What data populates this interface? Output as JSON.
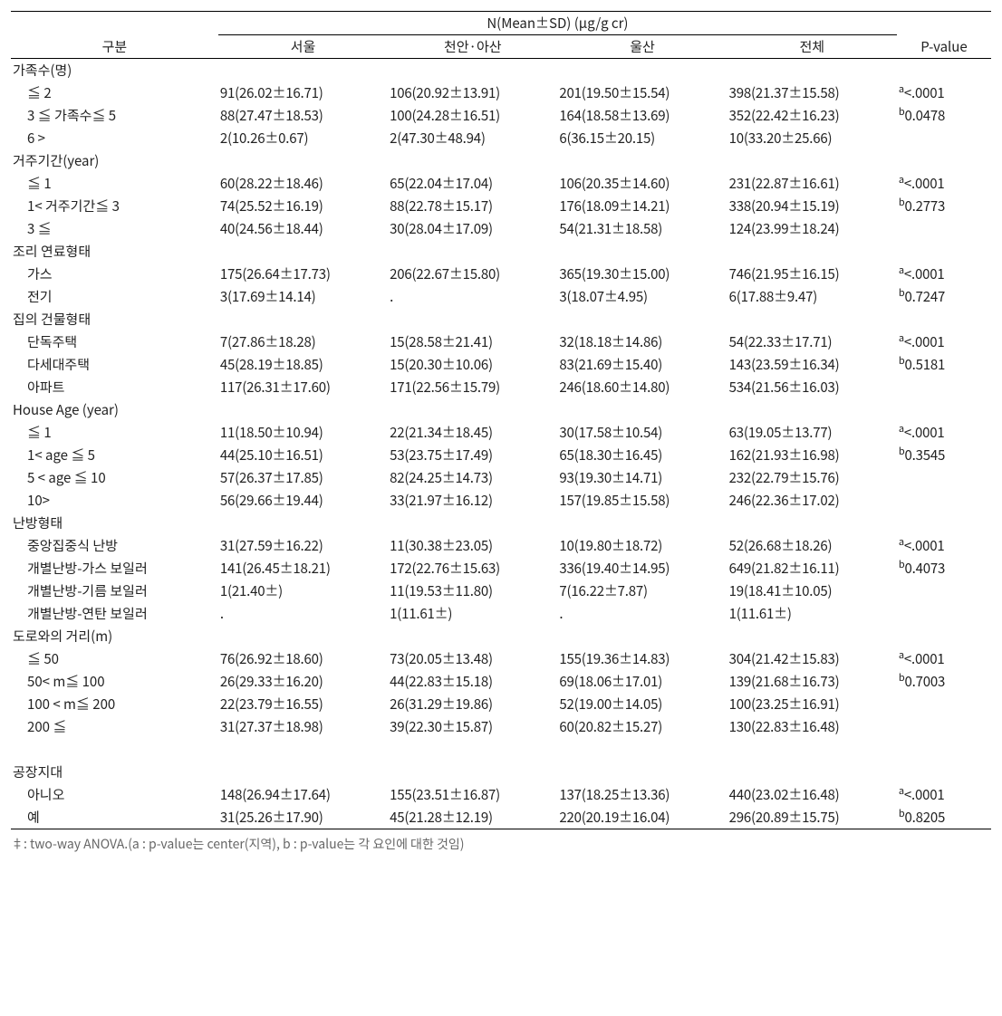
{
  "header": {
    "gubun": "구분",
    "group_header": "N(Mean±SD) (μg/g cr)",
    "cols": [
      "서울",
      "천안·아산",
      "울산",
      "전체"
    ],
    "pvalue": "P-value"
  },
  "footnote": "‡: two-way ANOVA.(a : p-value는 center(지역), b : p-value는 각 요인에 대한 것임)",
  "groups": [
    {
      "label": "가족수(명)",
      "rows": [
        {
          "label": "≦ 2",
          "cells": [
            "91(26.02±16.71)",
            "106(20.92±13.91)",
            "201(19.50±15.54)",
            "398(21.37±15.58)"
          ],
          "p": {
            "sup": "a",
            "val": "<.0001"
          }
        },
        {
          "label": "3 ≦ 가족수≦ 5",
          "cells": [
            "88(27.47±18.53)",
            "100(24.28±16.51)",
            "164(18.58±13.69)",
            "352(22.42±16.23)"
          ],
          "p": {
            "sup": "b",
            "val": "0.0478"
          }
        },
        {
          "label": "6 >",
          "cells": [
            "2(10.26±0.67)",
            "2(47.30±48.94)",
            "6(36.15±20.15)",
            "10(33.20±25.66)"
          ],
          "p": null
        }
      ]
    },
    {
      "label": "거주기간(year)",
      "rows": [
        {
          "label": "≦ 1",
          "cells": [
            "60(28.22±18.46)",
            "65(22.04±17.04)",
            "106(20.35±14.60)",
            "231(22.87±16.61)"
          ],
          "p": {
            "sup": "a",
            "val": "<.0001"
          }
        },
        {
          "label": "1< 거주기간≦ 3",
          "cells": [
            "74(25.52±16.19)",
            "88(22.78±15.17)",
            "176(18.09±14.21)",
            "338(20.94±15.19)"
          ],
          "p": {
            "sup": "b",
            "val": "0.2773"
          }
        },
        {
          "label": "3 ≦",
          "cells": [
            "40(24.56±18.44)",
            "30(28.04±17.09)",
            "54(21.31±18.58)",
            "124(23.99±18.24)"
          ],
          "p": null
        }
      ]
    },
    {
      "label": "조리 연료형태",
      "rows": [
        {
          "label": "가스",
          "cells": [
            "175(26.64±17.73)",
            "206(22.67±15.80)",
            "365(19.30±15.00)",
            "746(21.95±16.15)"
          ],
          "p": {
            "sup": "a",
            "val": "<.0001"
          }
        },
        {
          "label": "전기",
          "cells": [
            "3(17.69±14.14)",
            ".",
            "3(18.07±4.95)",
            "6(17.88±9.47)"
          ],
          "p": {
            "sup": "b",
            "val": "0.7247"
          }
        }
      ]
    },
    {
      "label": "집의 건물형태",
      "rows": [
        {
          "label": "단독주택",
          "cells": [
            "7(27.86±18.28)",
            "15(28.58±21.41)",
            "32(18.18±14.86)",
            "54(22.33±17.71)"
          ],
          "p": {
            "sup": "a",
            "val": "<.0001"
          }
        },
        {
          "label": "다세대주택",
          "cells": [
            "45(28.19±18.85)",
            "15(20.30±10.06)",
            "83(21.69±15.40)",
            "143(23.59±16.34)"
          ],
          "p": {
            "sup": "b",
            "val": "0.5181"
          }
        },
        {
          "label": "아파트",
          "cells": [
            "117(26.31±17.60)",
            "171(22.56±15.79)",
            "246(18.60±14.80)",
            "534(21.56±16.03)"
          ],
          "p": null
        }
      ]
    },
    {
      "label": "House Age (year)",
      "rows": [
        {
          "label": "≦ 1",
          "cells": [
            "11(18.50±10.94)",
            "22(21.34±18.45)",
            "30(17.58±10.54)",
            "63(19.05±13.77)"
          ],
          "p": {
            "sup": "a",
            "val": "<.0001"
          }
        },
        {
          "label": "1< age ≦ 5",
          "cells": [
            "44(25.10±16.51)",
            "53(23.75±17.49)",
            "65(18.30±16.45)",
            "162(21.93±16.98)"
          ],
          "p": {
            "sup": "b",
            "val": "0.3545"
          }
        },
        {
          "label": "5 < age ≦ 10",
          "cells": [
            "57(26.37±17.85)",
            "82(24.25±14.73)",
            "93(19.30±14.71)",
            "232(22.79±15.76)"
          ],
          "p": null
        },
        {
          "label": "10>",
          "cells": [
            "56(29.66±19.44)",
            "33(21.97±16.12)",
            "157(19.85±15.58)",
            "246(22.36±17.02)"
          ],
          "p": null
        }
      ]
    },
    {
      "label": "난방형태",
      "rows": [
        {
          "label": "중앙집중식 난방",
          "cells": [
            "31(27.59±16.22)",
            "11(30.38±23.05)",
            "10(19.80±18.72)",
            "52(26.68±18.26)"
          ],
          "p": {
            "sup": "a",
            "val": "<.0001"
          }
        },
        {
          "label": "개별난방-가스 보일러",
          "cells": [
            "141(26.45±18.21)",
            "172(22.76±15.63)",
            "336(19.40±14.95)",
            "649(21.82±16.11)"
          ],
          "p": {
            "sup": "b",
            "val": "0.4073"
          }
        },
        {
          "label": "개별난방-기름 보일러",
          "cells": [
            "1(21.40±)",
            "11(19.53±11.80)",
            "7(16.22±7.87)",
            "19(18.41±10.05)"
          ],
          "p": null
        },
        {
          "label": "개별난방-연탄 보일러",
          "cells": [
            ".",
            "1(11.61±)",
            ".",
            "1(11.61±)"
          ],
          "p": null
        }
      ]
    },
    {
      "label": "도로와의 거리(m)",
      "rows": [
        {
          "label": "≦ 50",
          "cells": [
            "76(26.92±18.60)",
            "73(20.05±13.48)",
            "155(19.36±14.83)",
            "304(21.42±15.83)"
          ],
          "p": {
            "sup": "a",
            "val": "<.0001"
          }
        },
        {
          "label": "50< m≦ 100",
          "cells": [
            "26(29.33±16.20)",
            "44(22.83±15.18)",
            "69(18.06±17.01)",
            "139(21.68±16.73)"
          ],
          "p": {
            "sup": "b",
            "val": "0.7003"
          }
        },
        {
          "label": "100 < m≦ 200",
          "cells": [
            "22(23.79±16.55)",
            "26(31.29±19.86)",
            "52(19.00±14.05)",
            "100(23.25±16.91)"
          ],
          "p": null
        },
        {
          "label": "200 ≦",
          "cells": [
            "31(27.37±18.98)",
            "39(22.30±15.87)",
            "60(20.82±15.27)",
            "130(22.83±16.48)"
          ],
          "p": null
        }
      ],
      "gap_after": true
    },
    {
      "label": "공장지대",
      "rows": [
        {
          "label": "아니오",
          "cells": [
            "148(26.94±17.64)",
            "155(23.51±16.87)",
            "137(18.25±13.36)",
            "440(23.02±16.48)"
          ],
          "p": {
            "sup": "a",
            "val": "<.0001"
          }
        },
        {
          "label": "예",
          "cells": [
            "31(25.26±17.90)",
            "45(21.28±12.19)",
            "220(20.19±16.04)",
            "296(20.89±15.75)"
          ],
          "p": {
            "sup": "b",
            "val": "0.8205"
          }
        }
      ]
    }
  ]
}
